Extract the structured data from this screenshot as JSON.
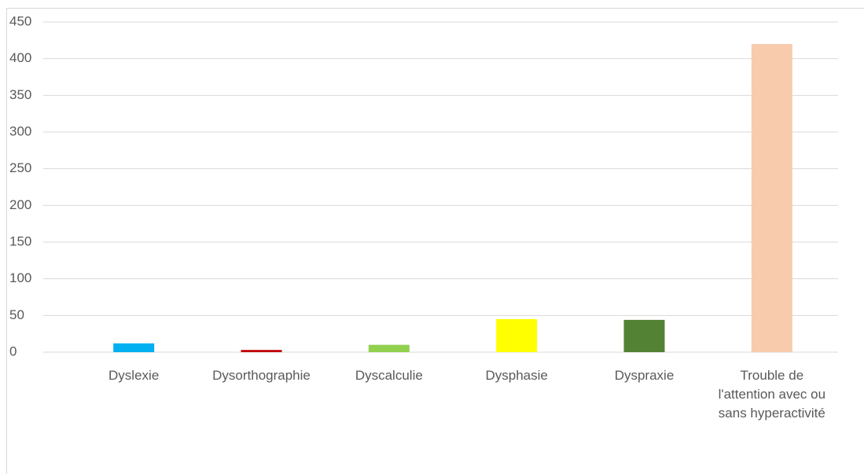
{
  "chart_data": {
    "type": "bar",
    "categories": [
      "Dyslexie",
      "Dysorthographie",
      "Dyscalculie",
      "Dysphasie",
      "Dyspraxie",
      "Trouble de l'attention avec ou sans hyperactivité"
    ],
    "values": [
      12,
      3,
      10,
      45,
      44,
      420
    ],
    "colors": [
      "#00b0f0",
      "#c00000",
      "#92d050",
      "#ffff00",
      "#548235",
      "#f8cbad"
    ],
    "ylim": [
      0,
      450
    ],
    "yticks": [
      0,
      50,
      100,
      150,
      200,
      250,
      300,
      350,
      400,
      450
    ],
    "grid": true
  }
}
